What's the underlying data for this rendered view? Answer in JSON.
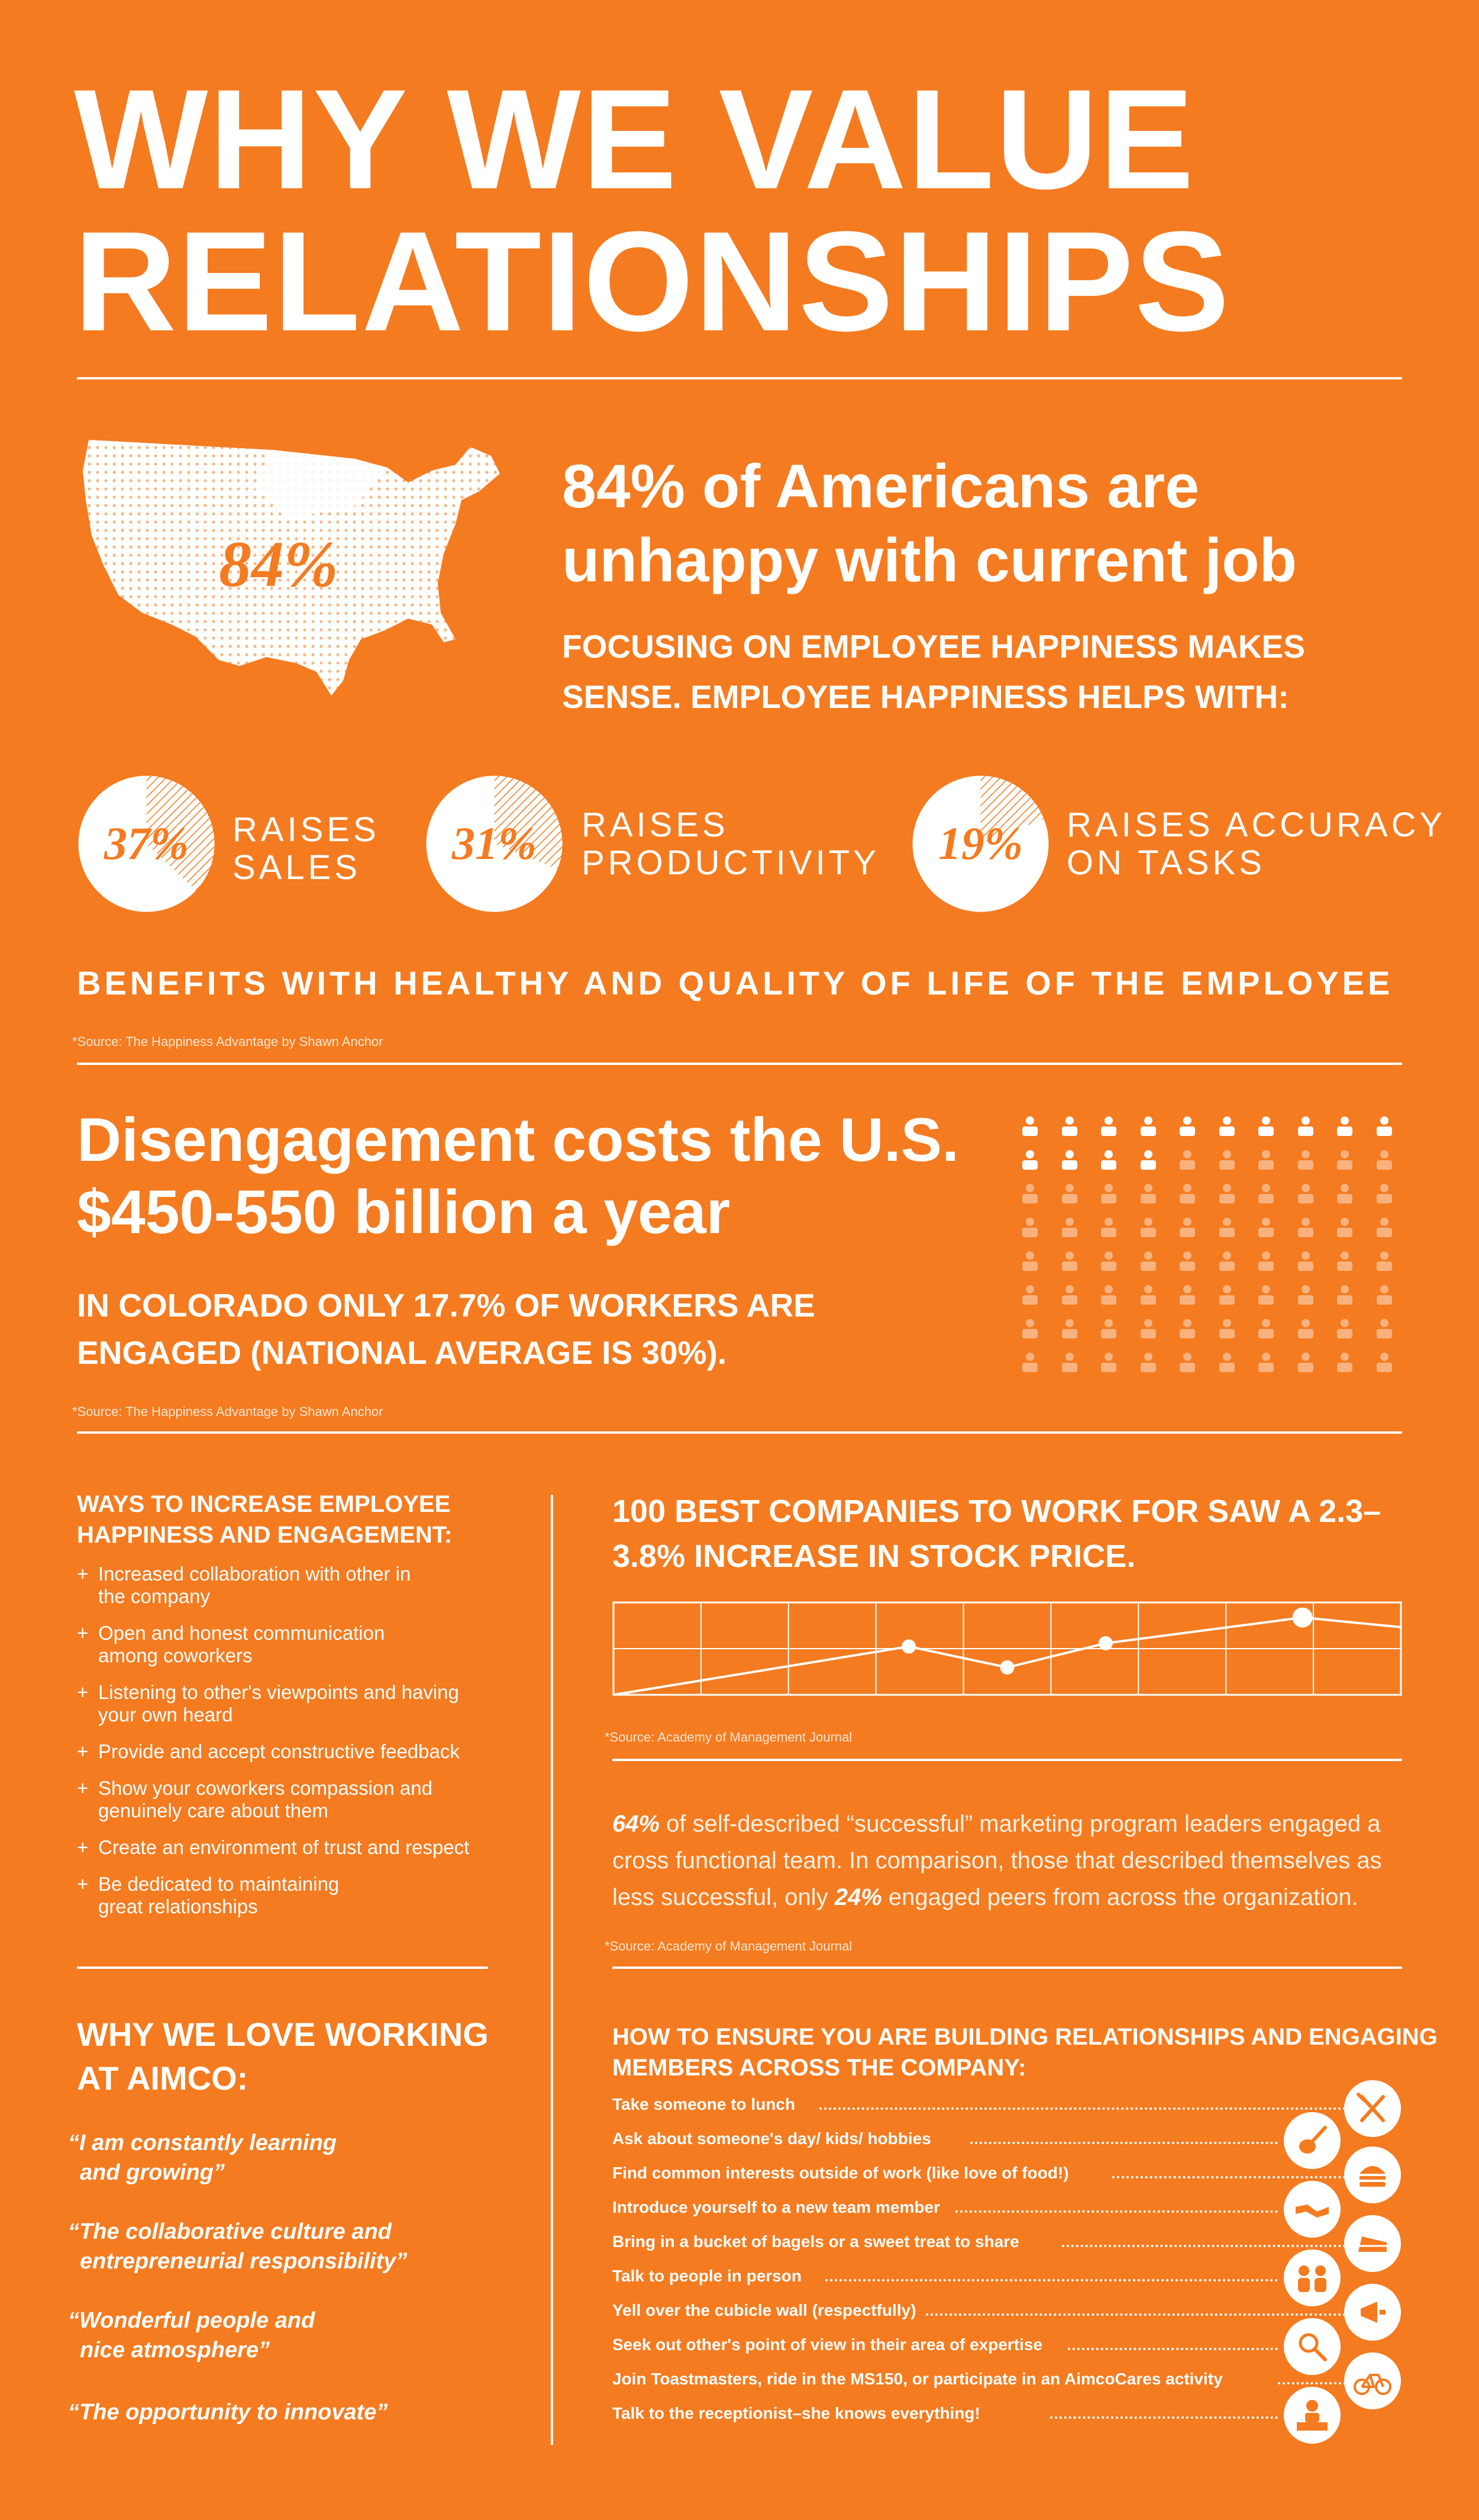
{
  "title": {
    "line1": "WHY WE VALUE",
    "line2": "RELATIONSHIPS"
  },
  "map": {
    "label": "84%"
  },
  "unhappy": {
    "headline": "84% of Americans are unhappy with current job",
    "subhead": "FOCUSING ON EMPLOYEE HAPPINESS MAKES SENSE. EMPLOYEE HAPPINESS HELPS WITH:"
  },
  "happiness_stats": [
    {
      "percent_label": "37%",
      "line1": "RAISES",
      "line2": "SALES",
      "value": 37
    },
    {
      "percent_label": "31%",
      "line1": "RAISES",
      "line2": "PRODUCTIVITY",
      "value": 31
    },
    {
      "percent_label": "19%",
      "line1": "RAISES ACCURACY",
      "line2": "ON TASKS",
      "value": 19
    }
  ],
  "benefits": "BENEFITS WITH HEALTHY AND QUALITY OF LIFE OF THE EMPLOYEE",
  "source_happiness": "*Source: The Happiness Advantage by Shawn Anchor",
  "disengagement": {
    "headline": "Disengagement costs the U.S. $450-550 billion a year",
    "subhead": "IN COLORADO ONLY 17.7% OF WORKERS ARE ENGAGED (NATIONAL AVERAGE IS 30%).",
    "source": "*Source: The Happiness Advantage by Shawn Anchor",
    "people_grid": {
      "rows": 8,
      "cols": 10,
      "engaged_count": 14
    }
  },
  "ways": {
    "title": "WAYS TO INCREASE EMPLOYEE HAPPINESS AND ENGAGEMENT:",
    "items": [
      {
        "line1": "Increased collaboration with other in",
        "line2": "the company"
      },
      {
        "line1": "Open and honest communication",
        "line2": "among coworkers"
      },
      {
        "line1": "Listening to other's viewpoints and having",
        "line2": "your own heard"
      },
      {
        "line1": "Provide and accept constructive feedback",
        "line2": ""
      },
      {
        "line1": "Show your coworkers compassion and",
        "line2": "genuinely care about them"
      },
      {
        "line1": "Create an environment of trust and respect",
        "line2": ""
      },
      {
        "line1": "Be dedicated to maintaining",
        "line2": "great relationships"
      }
    ]
  },
  "love": {
    "title": "WHY WE LOVE WORKING AT AIMCO:",
    "quotes": [
      {
        "line1": "“I am constantly learning",
        "line2": "and growing”"
      },
      {
        "line1": "“The collaborative culture and",
        "line2": "entrepreneurial responsibility”"
      },
      {
        "line1": "“Wonderful people and",
        "line2": "nice atmosphere”"
      },
      {
        "line1": "“The opportunity to innovate”",
        "line2": ""
      }
    ]
  },
  "best": {
    "title": "100 BEST COMPANIES TO WORK FOR SAW A 2.3–3.8% INCREASE IN STOCK PRICE.",
    "source": "*Source: Academy of Management Journal"
  },
  "chart_data": {
    "type": "line",
    "title": "",
    "xlabel": "",
    "ylabel": "",
    "x": [
      0,
      1,
      2,
      3,
      4,
      5,
      6,
      7,
      8
    ],
    "values": [
      0.0,
      1.0,
      2.0,
      3.0,
      1.7,
      3.2,
      4.0,
      4.8,
      4.2
    ],
    "markers_at": [
      3,
      4,
      5,
      7
    ],
    "ylim": [
      0,
      5
    ],
    "grid": true
  },
  "engaged_para": {
    "pct1": "64%",
    "text1": " of self-described “successful” marketing program leaders engaged a cross functional team. In comparison, those that described themselves as less successful, only ",
    "pct2": "24%",
    "text2": " engaged peers from across the organization.",
    "source": "*Source: Academy of Management Journal"
  },
  "howto": {
    "title": "HOW TO ENSURE YOU ARE BUILDING RELATIONSHIPS AND ENGAGING MEMBERS ACROSS THE COMPANY:",
    "tips": [
      {
        "text": "Take someone to lunch",
        "icon": "utensils-icon"
      },
      {
        "text": "Ask about someone's day/ kids/ hobbies",
        "icon": "guitar-icon"
      },
      {
        "text": "Find common interests outside of work (like love of food!)",
        "icon": "burger-icon"
      },
      {
        "text": "Introduce yourself to a new team member",
        "icon": "handshake-icon"
      },
      {
        "text": "Bring in a bucket of bagels or a sweet treat to share",
        "icon": "cake-icon"
      },
      {
        "text": "Talk to people in person",
        "icon": "people-talking-icon"
      },
      {
        "text": "Yell over the cubicle wall (respectfully)",
        "icon": "megaphone-icon"
      },
      {
        "text": "Seek out other's point of view in their area of expertise",
        "icon": "magnifier-icon"
      },
      {
        "text": "Join Toastmasters,  ride in the MS150, or participate in an AimcoCares activity",
        "icon": "bicycle-icon"
      },
      {
        "text": "Talk to the receptionist–she knows everything!",
        "icon": "receptionist-icon"
      }
    ]
  },
  "colors": {
    "background": "#F47B20",
    "foreground": "#ffffff",
    "faded": "#F9B27E"
  }
}
